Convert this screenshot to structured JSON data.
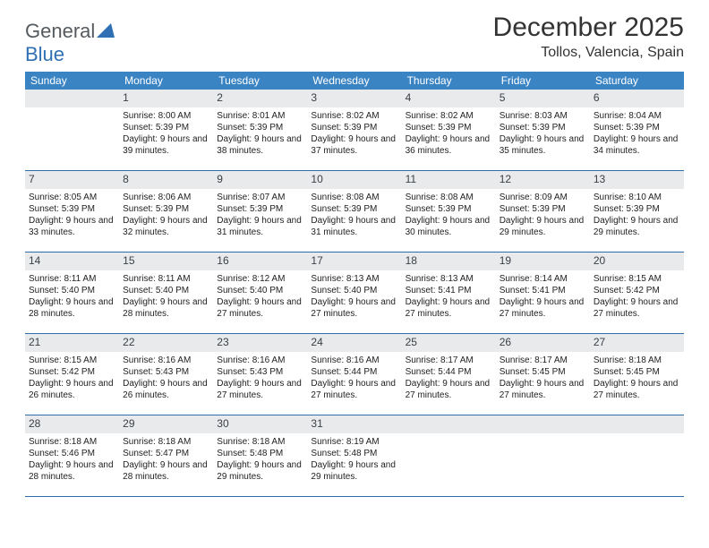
{
  "logo": {
    "main": "General",
    "accent": "Blue"
  },
  "title": "December 2025",
  "location": "Tollos, Valencia, Spain",
  "colors": {
    "header_bg": "#3b84c4",
    "header_text": "#ffffff",
    "daynum_bg": "#e8eaec",
    "week_border": "#2e6da8",
    "logo_gray": "#555a5f",
    "logo_blue": "#2f6fb3"
  },
  "dow": [
    "Sunday",
    "Monday",
    "Tuesday",
    "Wednesday",
    "Thursday",
    "Friday",
    "Saturday"
  ],
  "weeks": [
    [
      {
        "n": "",
        "sr": "",
        "ss": "",
        "dl": ""
      },
      {
        "n": "1",
        "sr": "Sunrise: 8:00 AM",
        "ss": "Sunset: 5:39 PM",
        "dl": "Daylight: 9 hours and 39 minutes."
      },
      {
        "n": "2",
        "sr": "Sunrise: 8:01 AM",
        "ss": "Sunset: 5:39 PM",
        "dl": "Daylight: 9 hours and 38 minutes."
      },
      {
        "n": "3",
        "sr": "Sunrise: 8:02 AM",
        "ss": "Sunset: 5:39 PM",
        "dl": "Daylight: 9 hours and 37 minutes."
      },
      {
        "n": "4",
        "sr": "Sunrise: 8:02 AM",
        "ss": "Sunset: 5:39 PM",
        "dl": "Daylight: 9 hours and 36 minutes."
      },
      {
        "n": "5",
        "sr": "Sunrise: 8:03 AM",
        "ss": "Sunset: 5:39 PM",
        "dl": "Daylight: 9 hours and 35 minutes."
      },
      {
        "n": "6",
        "sr": "Sunrise: 8:04 AM",
        "ss": "Sunset: 5:39 PM",
        "dl": "Daylight: 9 hours and 34 minutes."
      }
    ],
    [
      {
        "n": "7",
        "sr": "Sunrise: 8:05 AM",
        "ss": "Sunset: 5:39 PM",
        "dl": "Daylight: 9 hours and 33 minutes."
      },
      {
        "n": "8",
        "sr": "Sunrise: 8:06 AM",
        "ss": "Sunset: 5:39 PM",
        "dl": "Daylight: 9 hours and 32 minutes."
      },
      {
        "n": "9",
        "sr": "Sunrise: 8:07 AM",
        "ss": "Sunset: 5:39 PM",
        "dl": "Daylight: 9 hours and 31 minutes."
      },
      {
        "n": "10",
        "sr": "Sunrise: 8:08 AM",
        "ss": "Sunset: 5:39 PM",
        "dl": "Daylight: 9 hours and 31 minutes."
      },
      {
        "n": "11",
        "sr": "Sunrise: 8:08 AM",
        "ss": "Sunset: 5:39 PM",
        "dl": "Daylight: 9 hours and 30 minutes."
      },
      {
        "n": "12",
        "sr": "Sunrise: 8:09 AM",
        "ss": "Sunset: 5:39 PM",
        "dl": "Daylight: 9 hours and 29 minutes."
      },
      {
        "n": "13",
        "sr": "Sunrise: 8:10 AM",
        "ss": "Sunset: 5:39 PM",
        "dl": "Daylight: 9 hours and 29 minutes."
      }
    ],
    [
      {
        "n": "14",
        "sr": "Sunrise: 8:11 AM",
        "ss": "Sunset: 5:40 PM",
        "dl": "Daylight: 9 hours and 28 minutes."
      },
      {
        "n": "15",
        "sr": "Sunrise: 8:11 AM",
        "ss": "Sunset: 5:40 PM",
        "dl": "Daylight: 9 hours and 28 minutes."
      },
      {
        "n": "16",
        "sr": "Sunrise: 8:12 AM",
        "ss": "Sunset: 5:40 PM",
        "dl": "Daylight: 9 hours and 27 minutes."
      },
      {
        "n": "17",
        "sr": "Sunrise: 8:13 AM",
        "ss": "Sunset: 5:40 PM",
        "dl": "Daylight: 9 hours and 27 minutes."
      },
      {
        "n": "18",
        "sr": "Sunrise: 8:13 AM",
        "ss": "Sunset: 5:41 PM",
        "dl": "Daylight: 9 hours and 27 minutes."
      },
      {
        "n": "19",
        "sr": "Sunrise: 8:14 AM",
        "ss": "Sunset: 5:41 PM",
        "dl": "Daylight: 9 hours and 27 minutes."
      },
      {
        "n": "20",
        "sr": "Sunrise: 8:15 AM",
        "ss": "Sunset: 5:42 PM",
        "dl": "Daylight: 9 hours and 27 minutes."
      }
    ],
    [
      {
        "n": "21",
        "sr": "Sunrise: 8:15 AM",
        "ss": "Sunset: 5:42 PM",
        "dl": "Daylight: 9 hours and 26 minutes."
      },
      {
        "n": "22",
        "sr": "Sunrise: 8:16 AM",
        "ss": "Sunset: 5:43 PM",
        "dl": "Daylight: 9 hours and 26 minutes."
      },
      {
        "n": "23",
        "sr": "Sunrise: 8:16 AM",
        "ss": "Sunset: 5:43 PM",
        "dl": "Daylight: 9 hours and 27 minutes."
      },
      {
        "n": "24",
        "sr": "Sunrise: 8:16 AM",
        "ss": "Sunset: 5:44 PM",
        "dl": "Daylight: 9 hours and 27 minutes."
      },
      {
        "n": "25",
        "sr": "Sunrise: 8:17 AM",
        "ss": "Sunset: 5:44 PM",
        "dl": "Daylight: 9 hours and 27 minutes."
      },
      {
        "n": "26",
        "sr": "Sunrise: 8:17 AM",
        "ss": "Sunset: 5:45 PM",
        "dl": "Daylight: 9 hours and 27 minutes."
      },
      {
        "n": "27",
        "sr": "Sunrise: 8:18 AM",
        "ss": "Sunset: 5:45 PM",
        "dl": "Daylight: 9 hours and 27 minutes."
      }
    ],
    [
      {
        "n": "28",
        "sr": "Sunrise: 8:18 AM",
        "ss": "Sunset: 5:46 PM",
        "dl": "Daylight: 9 hours and 28 minutes."
      },
      {
        "n": "29",
        "sr": "Sunrise: 8:18 AM",
        "ss": "Sunset: 5:47 PM",
        "dl": "Daylight: 9 hours and 28 minutes."
      },
      {
        "n": "30",
        "sr": "Sunrise: 8:18 AM",
        "ss": "Sunset: 5:48 PM",
        "dl": "Daylight: 9 hours and 29 minutes."
      },
      {
        "n": "31",
        "sr": "Sunrise: 8:19 AM",
        "ss": "Sunset: 5:48 PM",
        "dl": "Daylight: 9 hours and 29 minutes."
      },
      {
        "n": "",
        "sr": "",
        "ss": "",
        "dl": ""
      },
      {
        "n": "",
        "sr": "",
        "ss": "",
        "dl": ""
      },
      {
        "n": "",
        "sr": "",
        "ss": "",
        "dl": ""
      }
    ]
  ]
}
